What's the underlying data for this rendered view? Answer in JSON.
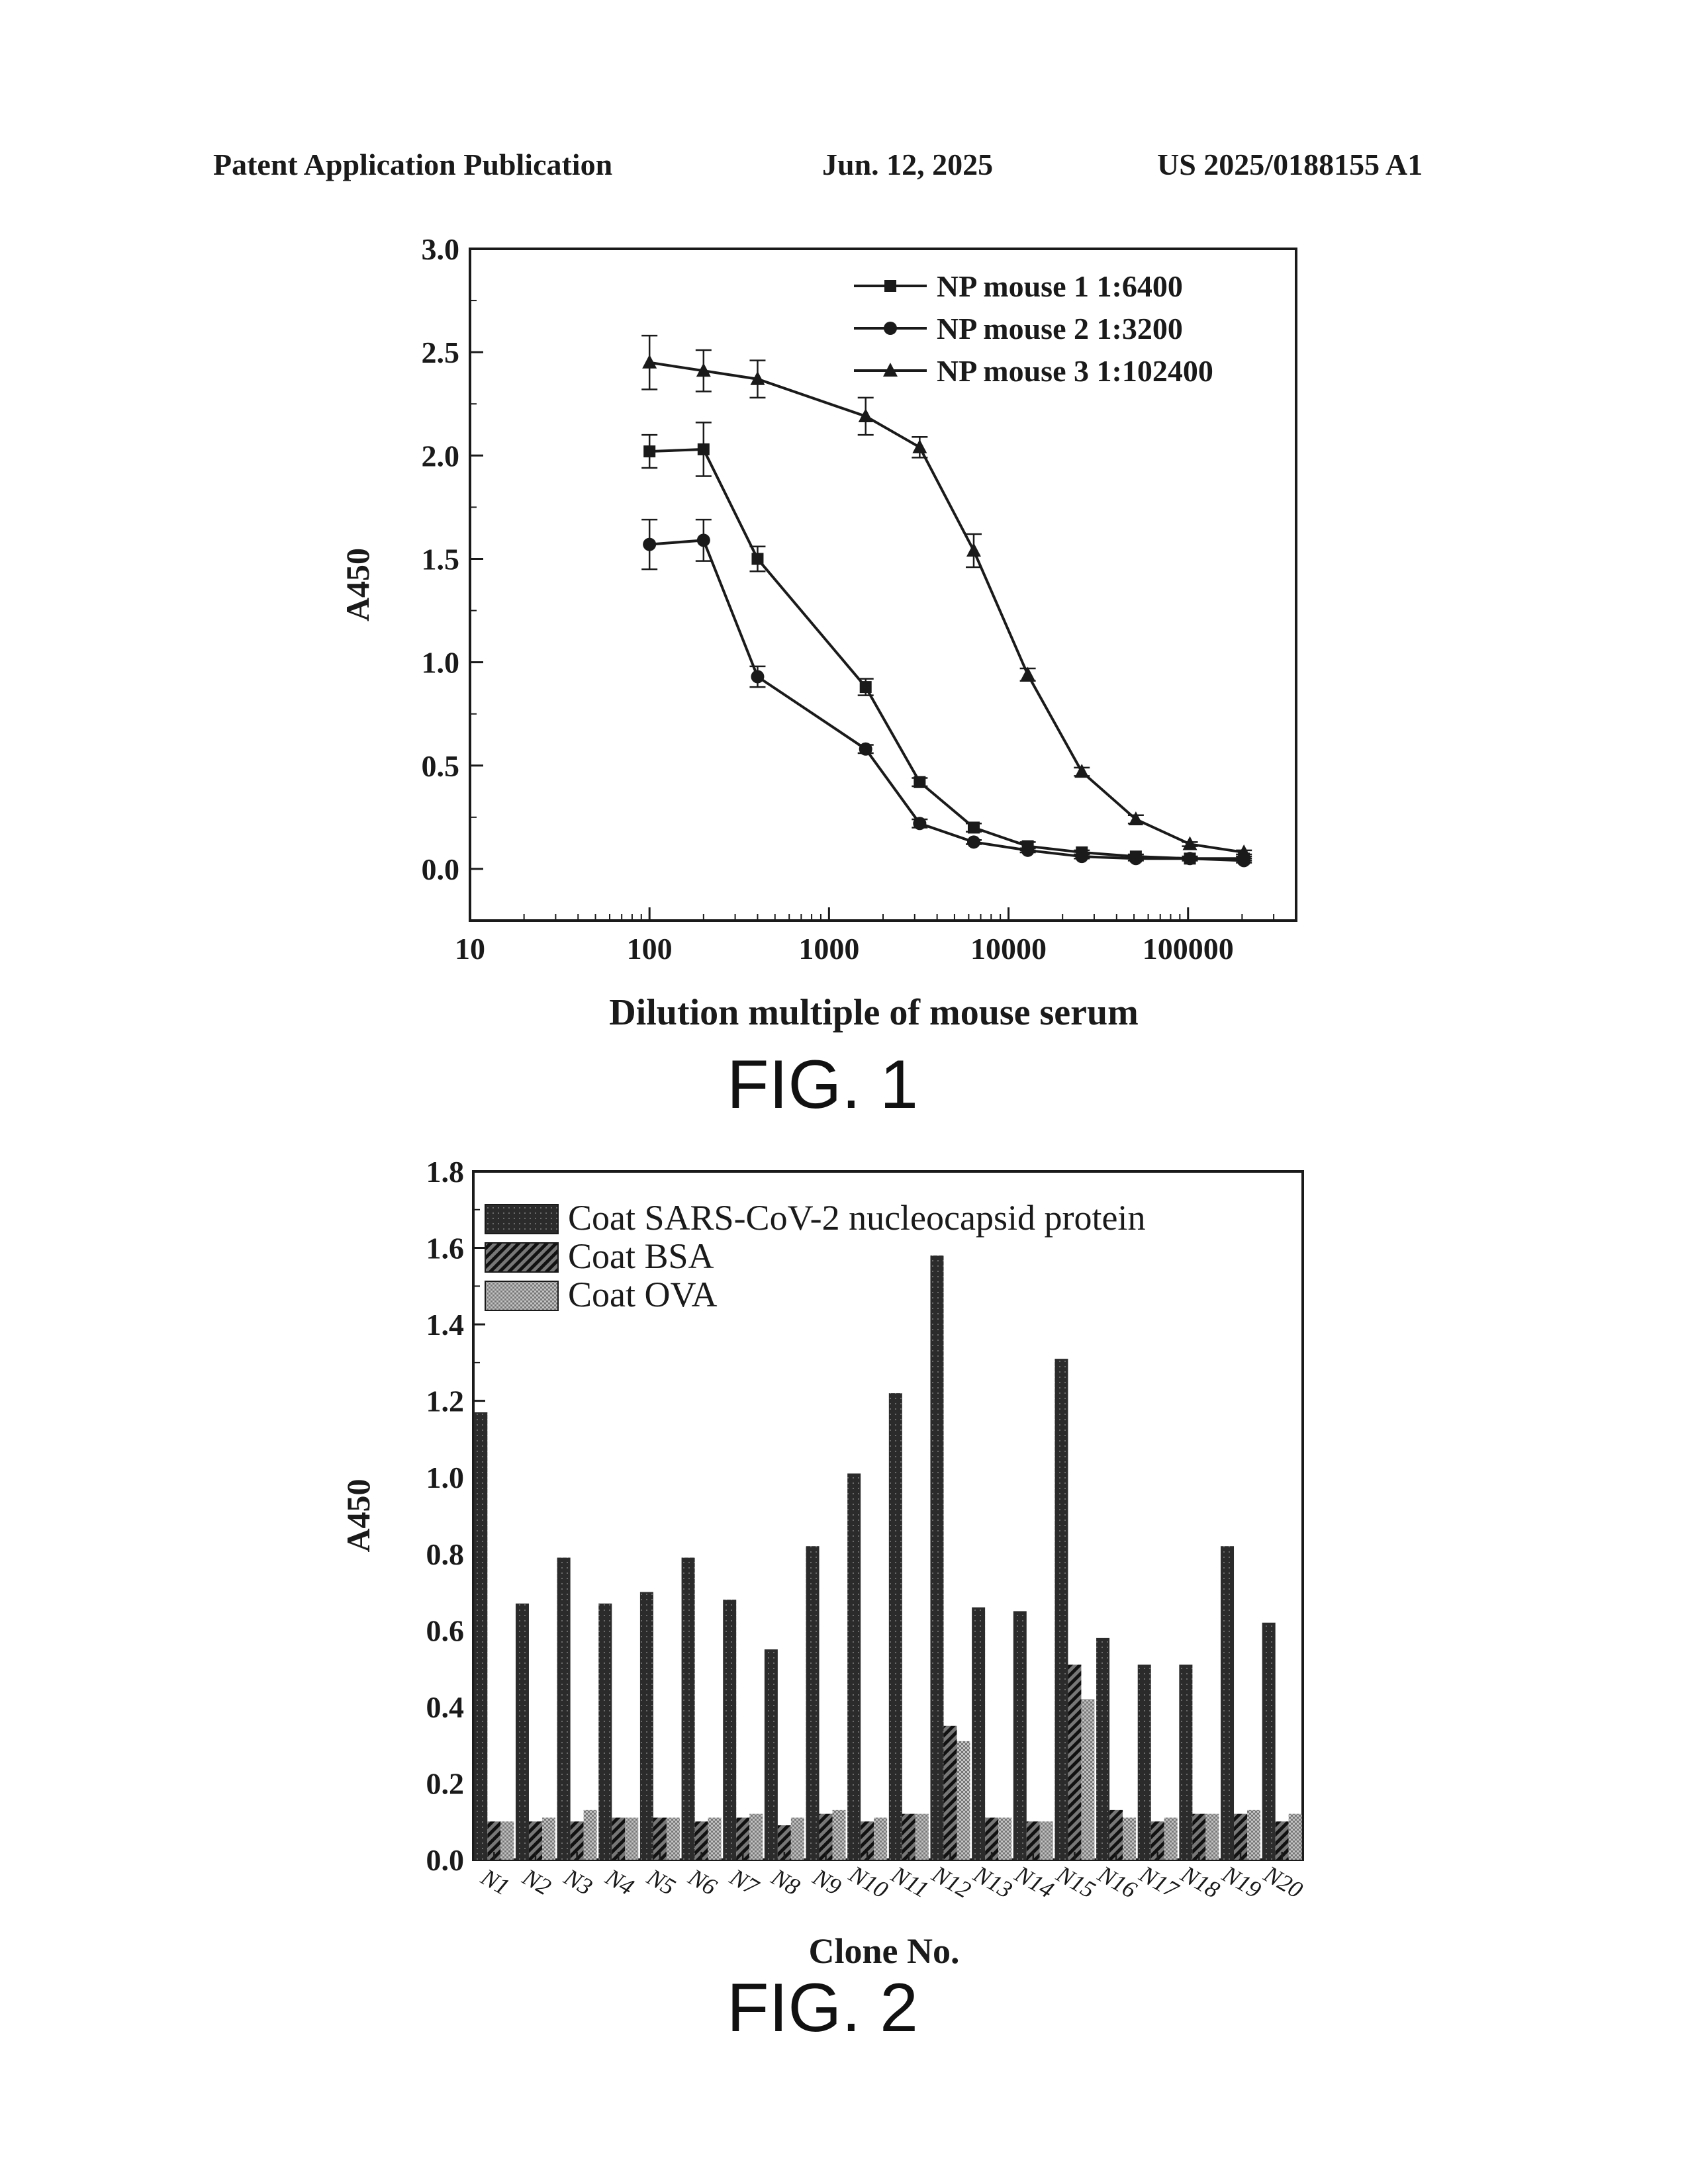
{
  "header": {
    "left": "Patent Application Publication",
    "date": "Jun. 12, 2025",
    "number": "US 2025/0188155 A1"
  },
  "fig1_caption": "FIG. 1",
  "fig2_caption": "FIG. 2",
  "colors": {
    "ink": "#1a1a1a",
    "bar_np": "#2b2b2b",
    "bar_bsa": "#4a4a4a",
    "bar_ova": "#a8a8a8"
  },
  "chart_data": [
    {
      "type": "line",
      "title": "",
      "xlabel": "Dilution multiple of mouse serum",
      "ylabel": "A450",
      "xscale": "log",
      "xlim": [
        10,
        400000
      ],
      "ylim": [
        -0.25,
        3.0
      ],
      "xticks": [
        10,
        100,
        1000,
        10000,
        100000
      ],
      "xtick_labels": [
        "10",
        "100",
        "1000",
        "10000",
        "100000"
      ],
      "yticks": [
        0.0,
        0.5,
        1.0,
        1.5,
        2.0,
        2.5,
        3.0
      ],
      "ytick_labels": [
        "0.0",
        "0.5",
        "1.0",
        "1.5",
        "2.0",
        "2.5",
        "3.0"
      ],
      "legend_position": "top-right",
      "x": [
        100,
        200,
        400,
        1600,
        3200,
        6400,
        12800,
        25600,
        51200,
        102400,
        204800
      ],
      "series": [
        {
          "name": "NP mouse 1",
          "titer": "1:6400",
          "marker": "square",
          "values": [
            2.02,
            2.03,
            1.5,
            0.88,
            0.42,
            0.2,
            0.11,
            0.08,
            0.06,
            0.05,
            0.05
          ],
          "errors": [
            0.08,
            0.13,
            0.06,
            0.04,
            0.02,
            0.02,
            0.02,
            0.01,
            0.01,
            0.01,
            0.01
          ]
        },
        {
          "name": "NP mouse 2",
          "titer": "1:3200",
          "marker": "circle",
          "values": [
            1.57,
            1.59,
            0.93,
            0.58,
            0.22,
            0.13,
            0.09,
            0.06,
            0.05,
            0.05,
            0.04
          ],
          "errors": [
            0.12,
            0.1,
            0.05,
            0.02,
            0.02,
            0.01,
            0.01,
            0.01,
            0.01,
            0.01,
            0.01
          ]
        },
        {
          "name": "NP mouse 3",
          "titer": "1:102400",
          "marker": "triangle",
          "values": [
            2.45,
            2.41,
            2.37,
            2.19,
            2.04,
            1.54,
            0.94,
            0.47,
            0.24,
            0.12,
            0.08
          ],
          "errors": [
            0.13,
            0.1,
            0.09,
            0.09,
            0.05,
            0.08,
            0.03,
            0.02,
            0.02,
            0.01,
            0.01
          ]
        }
      ]
    },
    {
      "type": "bar",
      "title": "",
      "xlabel": "Clone No.",
      "ylabel": "A450",
      "ylim": [
        0,
        1.8
      ],
      "yticks": [
        0.0,
        0.2,
        0.4,
        0.6,
        0.8,
        1.0,
        1.2,
        1.4,
        1.6,
        1.8
      ],
      "ytick_labels": [
        "0.0",
        "0.2",
        "0.4",
        "0.6",
        "0.8",
        "1.0",
        "1.2",
        "1.4",
        "1.6",
        "1.8"
      ],
      "legend_position": "top-left",
      "categories": [
        "N1",
        "N2",
        "N3",
        "N4",
        "N5",
        "N6",
        "N7",
        "N8",
        "N9",
        "N10",
        "N11",
        "N12",
        "N13",
        "N14",
        "N15",
        "N16",
        "N17",
        "N18",
        "N19",
        "N20"
      ],
      "series": [
        {
          "name": "Coat SARS-CoV-2 nucleocapsid protein",
          "values": [
            1.17,
            0.67,
            0.79,
            0.67,
            0.7,
            0.79,
            0.68,
            0.55,
            0.82,
            1.01,
            1.22,
            1.58,
            0.66,
            0.65,
            1.31,
            0.58,
            0.51,
            0.51,
            0.82,
            0.62
          ]
        },
        {
          "name": "Coat BSA",
          "values": [
            0.1,
            0.1,
            0.1,
            0.11,
            0.11,
            0.1,
            0.11,
            0.09,
            0.12,
            0.1,
            0.12,
            0.35,
            0.11,
            0.1,
            0.51,
            0.13,
            0.1,
            0.12,
            0.12,
            0.1
          ]
        },
        {
          "name": "Coat OVA",
          "values": [
            0.1,
            0.11,
            0.13,
            0.11,
            0.11,
            0.11,
            0.12,
            0.11,
            0.13,
            0.11,
            0.12,
            0.31,
            0.11,
            0.1,
            0.42,
            0.11,
            0.11,
            0.12,
            0.13,
            0.12
          ]
        }
      ]
    }
  ]
}
